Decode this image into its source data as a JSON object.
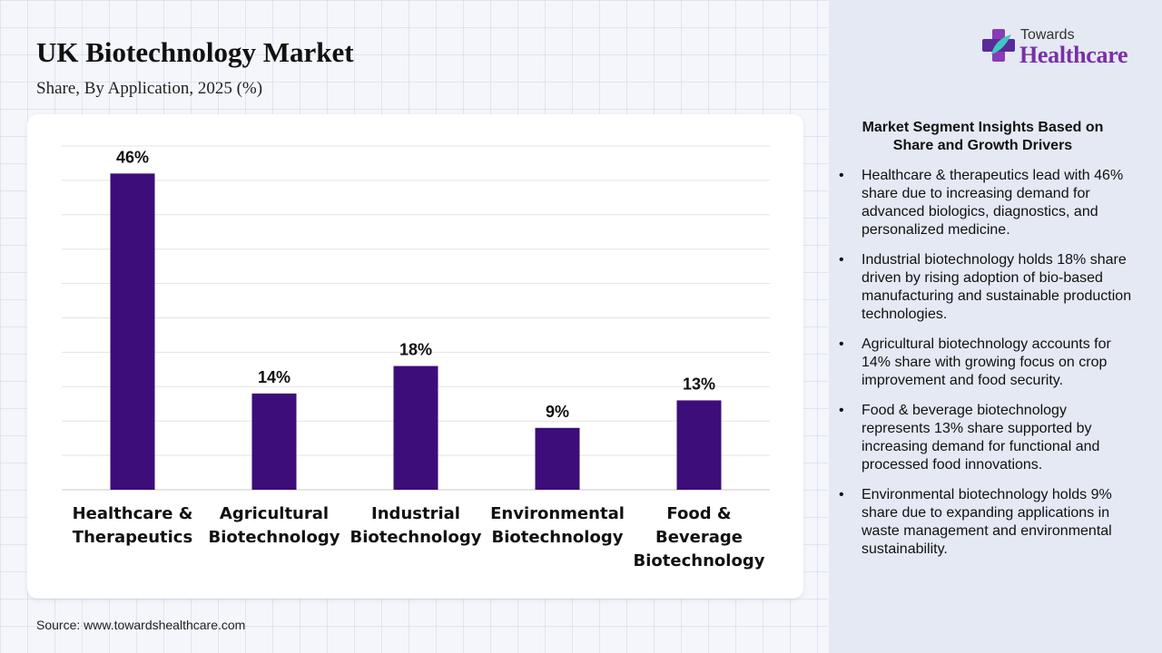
{
  "header": {
    "title": "UK Biotechnology Market",
    "subtitle": "Share, By Application, 2025 (%)"
  },
  "logo": {
    "line1": "Towards",
    "line2": "Healthcare"
  },
  "chart_data": {
    "type": "bar",
    "categories": [
      "Healthcare & Therapeutics",
      "Agricultural Biotechnology",
      "Industrial Biotechnology",
      "Environmental Biotechnology",
      "Food & Beverage Biotechnology"
    ],
    "category_lines": [
      [
        "Healthcare &",
        "Therapeutics"
      ],
      [
        "Agricultural",
        "Biotechnology"
      ],
      [
        "Industrial",
        "Biotechnology"
      ],
      [
        "Environmental",
        "Biotechnology"
      ],
      [
        "Food &",
        "Beverage",
        "Biotechnology"
      ]
    ],
    "values": [
      46,
      14,
      18,
      9,
      13
    ],
    "value_labels": [
      "46%",
      "14%",
      "18%",
      "9%",
      "13%"
    ],
    "ylim": [
      0,
      50
    ],
    "grid": true,
    "bar_color": "#3d0d7a"
  },
  "insights": {
    "title_lines": [
      "Market Segment Insights Based on",
      "Share and Growth Drivers"
    ],
    "bullet_char": "•",
    "items": [
      "Healthcare & therapeutics lead with 46% share due to increasing demand for advanced biologics, diagnostics, and personalized medicine.",
      "Industrial biotechnology holds 18% share driven by rising adoption of bio-based manufacturing and sustainable production technologies.",
      "Agricultural biotechnology accounts for 14% share with growing focus on crop improvement and food security.",
      "Food & beverage biotechnology represents 13% share supported by increasing demand for functional and processed food innovations.",
      "Environmental biotechnology holds 9% share due to expanding applications in waste management and environmental sustainability."
    ]
  },
  "footer": {
    "source": "Source: www.towardshealthcare.com"
  },
  "colors": {
    "accent": "#7a2fa6",
    "bar": "#3d0d7a",
    "panel": "#e4e9f4"
  }
}
